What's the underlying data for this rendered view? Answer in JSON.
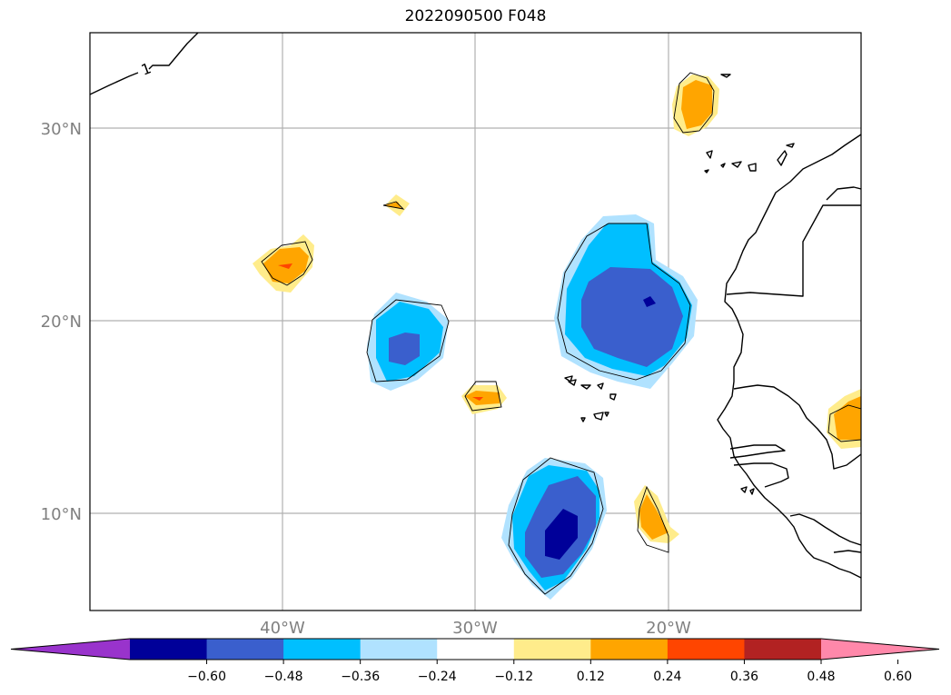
{
  "title": "2022090500 F048",
  "map": {
    "lat_labels": [
      "30°N",
      "20°N",
      "10°N"
    ],
    "lon_labels": [
      "40°W",
      "30°W",
      "20°W"
    ],
    "contour_label": "1"
  },
  "colorbar": {
    "tick_labels": [
      "−0.60",
      "−0.48",
      "−0.36",
      "−0.24",
      "−0.12",
      "0.12",
      "0.24",
      "0.36",
      "0.48",
      "0.60"
    ],
    "colors": [
      "#9933cc",
      "#000099",
      "#3a5fcd",
      "#00bfff",
      "#b0e2ff",
      "#ffffff",
      "#ffec8b",
      "#ffa500",
      "#ff4500",
      "#b22222",
      "#ff88aa"
    ]
  }
}
